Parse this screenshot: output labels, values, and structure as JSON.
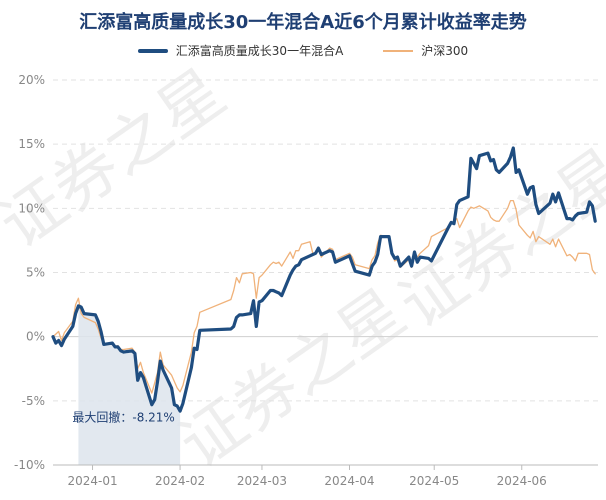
{
  "chart_data": {
    "type": "line",
    "title": "汇添富高质量成长30一年混合A近6个月累计收益率走势",
    "series": [
      {
        "name": "汇添富高质量成长30一年混合A",
        "color": "#1f4d80",
        "points": [
          [
            "2023-12-18",
            0.0
          ],
          [
            "2023-12-19",
            -0.5
          ],
          [
            "2023-12-20",
            -0.3
          ],
          [
            "2023-12-21",
            -0.7
          ],
          [
            "2023-12-22",
            -0.2
          ],
          [
            "2023-12-25",
            0.8
          ],
          [
            "2023-12-26",
            1.8
          ],
          [
            "2023-12-27",
            2.4
          ],
          [
            "2023-12-28",
            2.3
          ],
          [
            "2023-12-29",
            1.8
          ],
          [
            "2024-01-02",
            1.7
          ],
          [
            "2024-01-03",
            1.2
          ],
          [
            "2024-01-04",
            0.4
          ],
          [
            "2024-01-05",
            -0.6
          ],
          [
            "2024-01-08",
            -0.5
          ],
          [
            "2024-01-09",
            -0.8
          ],
          [
            "2024-01-10",
            -0.8
          ],
          [
            "2024-01-11",
            -1.1
          ],
          [
            "2024-01-12",
            -1.2
          ],
          [
            "2024-01-15",
            -1.1
          ],
          [
            "2024-01-16",
            -1.3
          ],
          [
            "2024-01-17",
            -3.4
          ],
          [
            "2024-01-18",
            -2.8
          ],
          [
            "2024-01-19",
            -3.2
          ],
          [
            "2024-01-22",
            -5.3
          ],
          [
            "2024-01-23",
            -4.9
          ],
          [
            "2024-01-24",
            -3.5
          ],
          [
            "2024-01-25",
            -1.9
          ],
          [
            "2024-01-26",
            -2.6
          ],
          [
            "2024-01-29",
            -4.0
          ],
          [
            "2024-01-30",
            -5.3
          ],
          [
            "2024-01-31",
            -5.4
          ],
          [
            "2024-02-01",
            -5.8
          ],
          [
            "2024-02-02",
            -5.2
          ],
          [
            "2024-02-05",
            -2.4
          ],
          [
            "2024-02-06",
            -0.9
          ],
          [
            "2024-02-07",
            -1.0
          ],
          [
            "2024-02-08",
            0.5
          ],
          [
            "2024-02-19",
            0.6
          ],
          [
            "2024-02-20",
            0.8
          ],
          [
            "2024-02-21",
            1.5
          ],
          [
            "2024-02-22",
            1.7
          ],
          [
            "2024-02-23",
            1.7
          ],
          [
            "2024-02-26",
            1.8
          ],
          [
            "2024-02-27",
            2.8
          ],
          [
            "2024-02-28",
            0.8
          ],
          [
            "2024-02-29",
            2.7
          ],
          [
            "2024-03-01",
            2.8
          ],
          [
            "2024-03-04",
            3.6
          ],
          [
            "2024-03-05",
            3.6
          ],
          [
            "2024-03-06",
            3.5
          ],
          [
            "2024-03-07",
            3.4
          ],
          [
            "2024-03-08",
            3.2
          ],
          [
            "2024-03-11",
            4.8
          ],
          [
            "2024-03-12",
            5.2
          ],
          [
            "2024-03-13",
            5.5
          ],
          [
            "2024-03-14",
            5.6
          ],
          [
            "2024-03-15",
            6.0
          ],
          [
            "2024-03-18",
            6.3
          ],
          [
            "2024-03-19",
            6.4
          ],
          [
            "2024-03-20",
            6.5
          ],
          [
            "2024-03-21",
            6.9
          ],
          [
            "2024-03-22",
            6.4
          ],
          [
            "2024-03-25",
            6.7
          ],
          [
            "2024-03-26",
            6.6
          ],
          [
            "2024-03-27",
            5.8
          ],
          [
            "2024-03-28",
            5.9
          ],
          [
            "2024-03-29",
            6.0
          ],
          [
            "2024-04-01",
            6.3
          ],
          [
            "2024-04-02",
            5.7
          ],
          [
            "2024-04-03",
            5.1
          ],
          [
            "2024-04-08",
            4.8
          ],
          [
            "2024-04-09",
            5.5
          ],
          [
            "2024-04-10",
            5.8
          ],
          [
            "2024-04-11",
            6.4
          ],
          [
            "2024-04-12",
            7.8
          ],
          [
            "2024-04-15",
            7.8
          ],
          [
            "2024-04-16",
            6.5
          ],
          [
            "2024-04-17",
            6.1
          ],
          [
            "2024-04-18",
            6.2
          ],
          [
            "2024-04-19",
            5.5
          ],
          [
            "2024-04-22",
            6.2
          ],
          [
            "2024-04-23",
            5.5
          ],
          [
            "2024-04-24",
            6.6
          ],
          [
            "2024-04-25",
            5.8
          ],
          [
            "2024-04-26",
            6.2
          ],
          [
            "2024-04-29",
            6.1
          ],
          [
            "2024-04-30",
            5.9
          ],
          [
            "2024-05-06",
            8.5
          ],
          [
            "2024-05-07",
            8.9
          ],
          [
            "2024-05-08",
            8.8
          ],
          [
            "2024-05-09",
            10.3
          ],
          [
            "2024-05-10",
            10.6
          ],
          [
            "2024-05-13",
            10.9
          ],
          [
            "2024-05-14",
            13.9
          ],
          [
            "2024-05-15",
            13.5
          ],
          [
            "2024-05-16",
            13.1
          ],
          [
            "2024-05-17",
            14.1
          ],
          [
            "2024-05-20",
            14.3
          ],
          [
            "2024-05-21",
            13.7
          ],
          [
            "2024-05-22",
            13.8
          ],
          [
            "2024-05-23",
            13.0
          ],
          [
            "2024-05-24",
            12.8
          ],
          [
            "2024-05-27",
            13.5
          ],
          [
            "2024-05-28",
            14.0
          ],
          [
            "2024-05-29",
            14.7
          ],
          [
            "2024-05-30",
            12.8
          ],
          [
            "2024-05-31",
            13.0
          ],
          [
            "2024-06-03",
            11.1
          ],
          [
            "2024-06-04",
            11.6
          ],
          [
            "2024-06-05",
            11.7
          ],
          [
            "2024-06-06",
            10.3
          ],
          [
            "2024-06-07",
            9.6
          ],
          [
            "2024-06-11",
            10.4
          ],
          [
            "2024-06-12",
            11.1
          ],
          [
            "2024-06-13",
            10.5
          ],
          [
            "2024-06-14",
            11.2
          ],
          [
            "2024-06-17",
            9.2
          ],
          [
            "2024-06-18",
            9.2
          ],
          [
            "2024-06-19",
            9.1
          ],
          [
            "2024-06-20",
            9.4
          ],
          [
            "2024-06-21",
            9.6
          ],
          [
            "2024-06-24",
            9.7
          ],
          [
            "2024-06-25",
            10.5
          ],
          [
            "2024-06-26",
            10.2
          ],
          [
            "2024-06-27",
            9.0
          ]
        ]
      },
      {
        "name": "沪深300",
        "color": "#f0b27a",
        "points": [
          [
            "2023-12-18",
            0.0
          ],
          [
            "2023-12-19",
            0.2
          ],
          [
            "2023-12-20",
            0.4
          ],
          [
            "2023-12-21",
            -0.3
          ],
          [
            "2023-12-22",
            0.3
          ],
          [
            "2023-12-25",
            1.2
          ],
          [
            "2023-12-26",
            2.5
          ],
          [
            "2023-12-27",
            3.0
          ],
          [
            "2023-12-28",
            1.8
          ],
          [
            "2023-12-29",
            1.5
          ],
          [
            "2024-01-02",
            1.1
          ],
          [
            "2024-01-03",
            0.6
          ],
          [
            "2024-01-04",
            -0.1
          ],
          [
            "2024-01-05",
            -0.6
          ],
          [
            "2024-01-08",
            -0.5
          ],
          [
            "2024-01-09",
            -0.8
          ],
          [
            "2024-01-10",
            -0.7
          ],
          [
            "2024-01-11",
            -1.0
          ],
          [
            "2024-01-12",
            -1.0
          ],
          [
            "2024-01-15",
            -0.9
          ],
          [
            "2024-01-16",
            -1.2
          ],
          [
            "2024-01-17",
            -2.5
          ],
          [
            "2024-01-18",
            -2.0
          ],
          [
            "2024-01-19",
            -2.8
          ],
          [
            "2024-01-22",
            -4.4
          ],
          [
            "2024-01-23",
            -3.6
          ],
          [
            "2024-01-24",
            -2.8
          ],
          [
            "2024-01-25",
            -1.2
          ],
          [
            "2024-01-26",
            -2.2
          ],
          [
            "2024-01-29",
            -3.0
          ],
          [
            "2024-01-30",
            -3.5
          ],
          [
            "2024-01-31",
            -4.0
          ],
          [
            "2024-02-01",
            -4.3
          ],
          [
            "2024-02-02",
            -3.8
          ],
          [
            "2024-02-05",
            -1.2
          ],
          [
            "2024-02-06",
            0.3
          ],
          [
            "2024-02-07",
            0.8
          ],
          [
            "2024-02-08",
            1.9
          ],
          [
            "2024-02-19",
            2.9
          ],
          [
            "2024-02-20",
            3.6
          ],
          [
            "2024-02-21",
            4.6
          ],
          [
            "2024-02-22",
            4.2
          ],
          [
            "2024-02-23",
            4.9
          ],
          [
            "2024-02-26",
            5.0
          ],
          [
            "2024-02-27",
            4.9
          ],
          [
            "2024-02-28",
            3.0
          ],
          [
            "2024-02-29",
            4.6
          ],
          [
            "2024-03-01",
            4.8
          ],
          [
            "2024-03-04",
            5.6
          ],
          [
            "2024-03-05",
            5.8
          ],
          [
            "2024-03-06",
            5.7
          ],
          [
            "2024-03-07",
            5.8
          ],
          [
            "2024-03-08",
            5.5
          ],
          [
            "2024-03-11",
            6.6
          ],
          [
            "2024-03-12",
            6.1
          ],
          [
            "2024-03-13",
            6.7
          ],
          [
            "2024-03-14",
            6.7
          ],
          [
            "2024-03-15",
            7.2
          ],
          [
            "2024-03-18",
            7.4
          ],
          [
            "2024-03-19",
            6.5
          ],
          [
            "2024-03-20",
            6.5
          ],
          [
            "2024-03-21",
            6.9
          ],
          [
            "2024-03-22",
            6.2
          ],
          [
            "2024-03-25",
            6.9
          ],
          [
            "2024-03-26",
            6.8
          ],
          [
            "2024-03-27",
            6.0
          ],
          [
            "2024-03-28",
            6.1
          ],
          [
            "2024-03-29",
            6.2
          ],
          [
            "2024-04-01",
            6.5
          ],
          [
            "2024-04-02",
            6.2
          ],
          [
            "2024-04-03",
            5.6
          ],
          [
            "2024-04-08",
            5.3
          ],
          [
            "2024-04-09",
            6.0
          ],
          [
            "2024-04-10",
            6.3
          ],
          [
            "2024-04-11",
            7.3
          ],
          [
            "2024-04-12",
            7.9
          ],
          [
            "2024-04-15",
            7.8
          ],
          [
            "2024-04-16",
            6.5
          ],
          [
            "2024-04-17",
            5.9
          ],
          [
            "2024-04-18",
            6.0
          ],
          [
            "2024-04-19",
            5.4
          ],
          [
            "2024-04-22",
            6.0
          ],
          [
            "2024-04-23",
            5.4
          ],
          [
            "2024-04-24",
            6.4
          ],
          [
            "2024-04-25",
            6.2
          ],
          [
            "2024-04-26",
            6.5
          ],
          [
            "2024-04-29",
            7.1
          ],
          [
            "2024-04-30",
            7.8
          ],
          [
            "2024-05-06",
            8.5
          ],
          [
            "2024-05-07",
            8.8
          ],
          [
            "2024-05-08",
            9.0
          ],
          [
            "2024-05-09",
            9.2
          ],
          [
            "2024-05-10",
            8.5
          ],
          [
            "2024-05-13",
            9.8
          ],
          [
            "2024-05-14",
            10.1
          ],
          [
            "2024-05-15",
            10.0
          ],
          [
            "2024-05-16",
            10.1
          ],
          [
            "2024-05-17",
            10.2
          ],
          [
            "2024-05-20",
            9.8
          ],
          [
            "2024-05-21",
            9.3
          ],
          [
            "2024-05-22",
            9.1
          ],
          [
            "2024-05-23",
            9.0
          ],
          [
            "2024-05-24",
            9.0
          ],
          [
            "2024-05-27",
            10.0
          ],
          [
            "2024-05-28",
            10.6
          ],
          [
            "2024-05-29",
            10.6
          ],
          [
            "2024-05-30",
            9.9
          ],
          [
            "2024-05-31",
            8.7
          ],
          [
            "2024-06-03",
            7.9
          ],
          [
            "2024-06-04",
            7.7
          ],
          [
            "2024-06-05",
            8.2
          ],
          [
            "2024-06-06",
            7.4
          ],
          [
            "2024-06-07",
            7.8
          ],
          [
            "2024-06-11",
            7.2
          ],
          [
            "2024-06-12",
            7.6
          ],
          [
            "2024-06-13",
            7.0
          ],
          [
            "2024-06-14",
            7.6
          ],
          [
            "2024-06-17",
            6.3
          ],
          [
            "2024-06-18",
            6.4
          ],
          [
            "2024-06-19",
            6.2
          ],
          [
            "2024-06-20",
            5.9
          ],
          [
            "2024-06-21",
            6.5
          ],
          [
            "2024-06-24",
            6.5
          ],
          [
            "2024-06-25",
            6.4
          ],
          [
            "2024-06-26",
            5.2
          ],
          [
            "2024-06-27",
            4.9
          ]
        ]
      }
    ],
    "y_ticks": [
      "20%",
      "15%",
      "10%",
      "5%",
      "0%",
      "-5%",
      "-10%"
    ],
    "y_tick_values": [
      20,
      15,
      10,
      5,
      0,
      -5,
      -10
    ],
    "ylim": [
      -10,
      20
    ],
    "x_ticks": [
      "2024-01",
      "2024-02",
      "2024-03",
      "2024-04",
      "2024-05",
      "2024-06"
    ],
    "xlim": [
      "2023-12-18",
      "2024-06-28"
    ],
    "grid": true,
    "legend": "top-center",
    "max_drawdown": {
      "label": "最大回撤：-8.21%",
      "start": "2023-12-27",
      "end": "2024-02-01",
      "fill": "#dde4ec"
    },
    "watermark": "证券之星"
  }
}
